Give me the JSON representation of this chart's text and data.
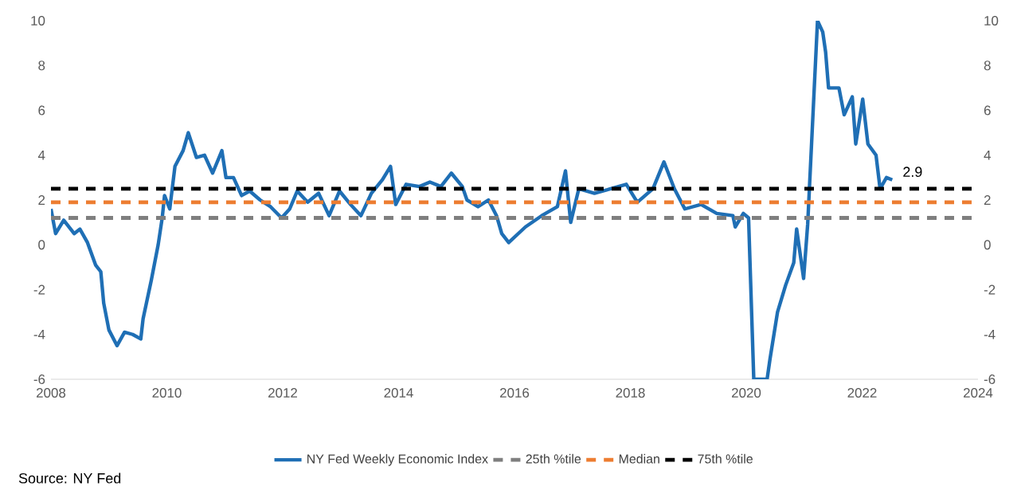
{
  "chart_data": {
    "type": "line",
    "xlim": [
      2008,
      2024
    ],
    "xticks": [
      2008,
      2010,
      2012,
      2014,
      2016,
      2018,
      2020,
      2022,
      2024
    ],
    "ylim": [
      -6,
      10
    ],
    "yticks": [
      -6,
      -4,
      -2,
      0,
      2,
      4,
      6,
      8,
      10
    ],
    "y2lim": [
      -6,
      10
    ],
    "y2ticks": [
      -6,
      -4,
      -2,
      0,
      2,
      4,
      6,
      8,
      10
    ],
    "legend": "bottom",
    "series": [
      {
        "name": "NY Fed Weekly Economic Index",
        "color": "#1f6fb5",
        "line_style": "solid",
        "x": [
          2008.0,
          2008.08,
          2008.22,
          2008.4,
          2008.5,
          2008.63,
          2008.77,
          2008.86,
          2008.91,
          2009.0,
          2009.14,
          2009.27,
          2009.41,
          2009.55,
          2009.59,
          2009.73,
          2009.85,
          2009.92,
          2009.96,
          2010.05,
          2010.14,
          2010.28,
          2010.37,
          2010.51,
          2010.65,
          2010.79,
          2010.95,
          2011.02,
          2011.15,
          2011.29,
          2011.43,
          2011.61,
          2011.79,
          2011.98,
          2012.12,
          2012.25,
          2012.43,
          2012.62,
          2012.8,
          2012.98,
          2013.17,
          2013.35,
          2013.53,
          2013.72,
          2013.86,
          2013.95,
          2014.13,
          2014.36,
          2014.54,
          2014.73,
          2014.91,
          2015.1,
          2015.18,
          2015.37,
          2015.55,
          2015.69,
          2015.78,
          2015.9,
          2016.19,
          2016.47,
          2016.74,
          2016.88,
          2016.97,
          2017.11,
          2017.38,
          2017.66,
          2017.93,
          2018.12,
          2018.39,
          2018.58,
          2018.76,
          2018.94,
          2019.22,
          2019.49,
          2019.77,
          2019.81,
          2019.95,
          2020.04,
          2020.13,
          2020.36,
          2020.41,
          2020.54,
          2020.68,
          2020.82,
          2020.87,
          2020.99,
          2021.06,
          2021.23,
          2021.32,
          2021.37,
          2021.42,
          2021.6,
          2021.69,
          2021.83,
          2021.89,
          2022.01,
          2022.1,
          2022.24,
          2022.31,
          2022.42,
          2022.52
        ],
        "values": [
          1.6,
          0.5,
          1.1,
          0.5,
          0.7,
          0.1,
          -0.9,
          -1.2,
          -2.6,
          -3.8,
          -4.5,
          -3.9,
          -4.0,
          -4.2,
          -3.3,
          -1.6,
          0.0,
          1.2,
          2.2,
          1.6,
          3.5,
          4.2,
          5.0,
          3.9,
          4.0,
          3.2,
          4.2,
          3.0,
          3.0,
          2.2,
          2.4,
          2.0,
          1.7,
          1.2,
          1.6,
          2.4,
          1.9,
          2.3,
          1.3,
          2.4,
          1.8,
          1.3,
          2.3,
          2.9,
          3.5,
          1.8,
          2.7,
          2.6,
          2.8,
          2.6,
          3.2,
          2.6,
          2.0,
          1.7,
          2.0,
          1.3,
          0.5,
          0.1,
          0.8,
          1.3,
          1.7,
          3.3,
          1.0,
          2.5,
          2.3,
          2.5,
          2.7,
          1.9,
          2.5,
          3.7,
          2.5,
          1.6,
          1.8,
          1.4,
          1.3,
          0.8,
          1.4,
          1.2,
          -6,
          -6,
          -5.1,
          -3.0,
          -1.8,
          -0.8,
          0.7,
          -1.5,
          0.9,
          10,
          9.5,
          8.6,
          7.0,
          7.0,
          5.8,
          6.6,
          4.5,
          6.5,
          4.5,
          4.0,
          2.5,
          3.0,
          2.9
        ]
      },
      {
        "name": "25th %tile",
        "color": "#7f7f7f",
        "line_style": "dashed",
        "x": [
          2008,
          2023.9
        ],
        "values": [
          1.2,
          1.2
        ]
      },
      {
        "name": "Median",
        "color": "#ed7d31",
        "line_style": "dashed",
        "x": [
          2008,
          2023.9
        ],
        "values": [
          1.9,
          1.9
        ]
      },
      {
        "name": "75th %tile",
        "color": "#000000",
        "line_style": "dashed",
        "x": [
          2008,
          2023.9
        ],
        "values": [
          2.5,
          2.5
        ]
      }
    ],
    "annotations": [
      {
        "text": "2.9",
        "x": 2022.52,
        "y": 2.9
      },
      "Source: NY Fed"
    ]
  }
}
